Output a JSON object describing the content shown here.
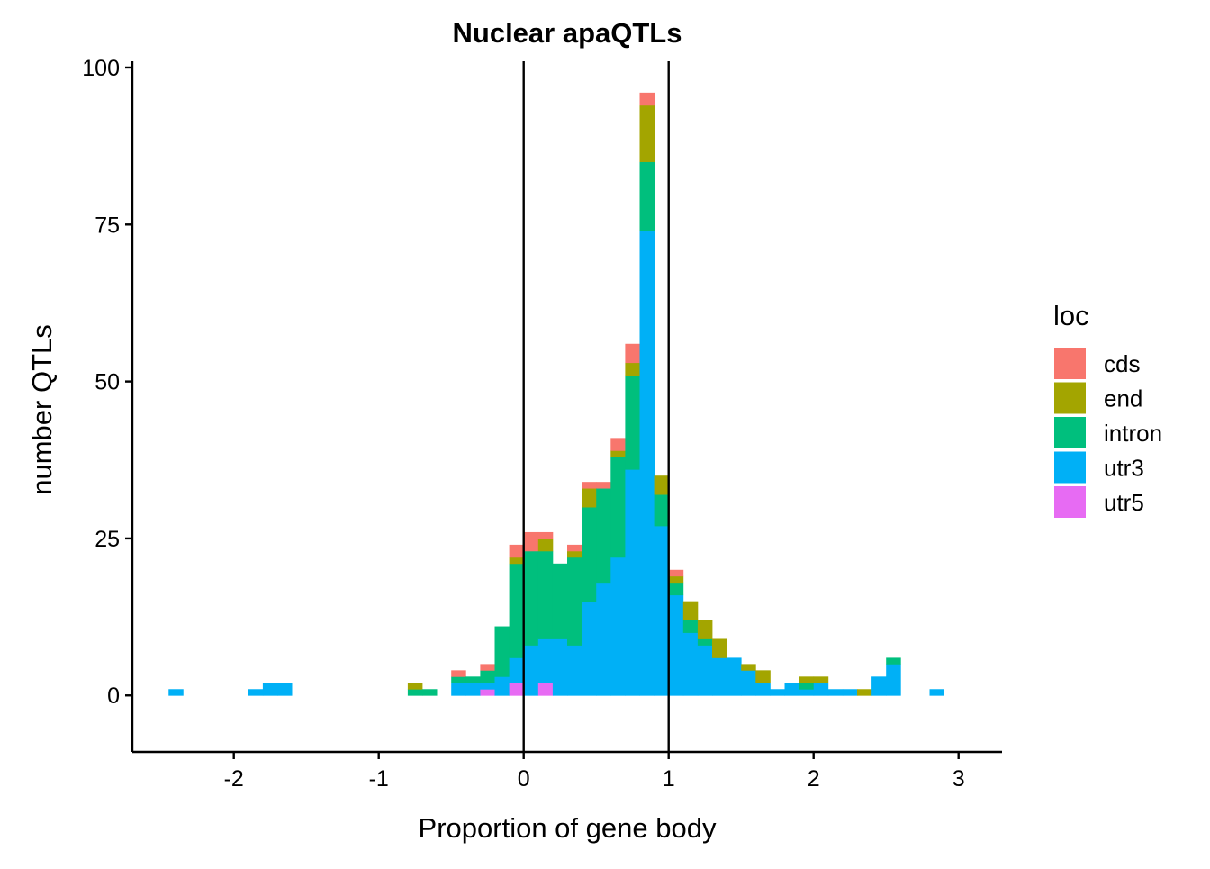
{
  "chart_data": {
    "type": "bar",
    "subtype": "stacked-histogram",
    "title": "Nuclear apaQTLs",
    "xlabel": "Proportion of gene body",
    "ylabel": "number QTLs",
    "xlim": [
      -2.7,
      3.3
    ],
    "ylim": [
      -9,
      101
    ],
    "bin_width": 0.1,
    "x_ticks": [
      -2,
      -1,
      0,
      1,
      2,
      3
    ],
    "x_tick_labels": [
      "-2",
      "-1",
      "0",
      "1",
      "2",
      "3"
    ],
    "y_ticks": [
      0,
      25,
      50,
      75,
      100
    ],
    "y_tick_labels": [
      "0",
      "25",
      "50",
      "75",
      "100"
    ],
    "reference_lines": [
      0,
      1
    ],
    "legend": {
      "title": "loc",
      "position": "right",
      "entries": [
        {
          "key": "cds",
          "label": "cds",
          "color": "#F8766D"
        },
        {
          "key": "end",
          "label": "end",
          "color": "#A3A500"
        },
        {
          "key": "intron",
          "label": "intron",
          "color": "#00BF7D"
        },
        {
          "key": "utr3",
          "label": "utr3",
          "color": "#00B0F6"
        },
        {
          "key": "utr5",
          "label": "utr5",
          "color": "#E76BF3"
        }
      ]
    },
    "stack_order": [
      "utr5",
      "utr3",
      "intron",
      "end",
      "cds"
    ],
    "bins": [
      {
        "x": -2.4,
        "utr3": 1
      },
      {
        "x": -1.85,
        "utr3": 1
      },
      {
        "x": -1.75,
        "utr3": 2
      },
      {
        "x": -1.65,
        "utr3": 2
      },
      {
        "x": -0.75,
        "intron": 1,
        "end": 1
      },
      {
        "x": -0.65,
        "intron": 1
      },
      {
        "x": -0.45,
        "utr3": 2,
        "intron": 1,
        "cds": 1
      },
      {
        "x": -0.35,
        "utr3": 2,
        "intron": 1
      },
      {
        "x": -0.25,
        "utr5": 1,
        "utr3": 1,
        "intron": 2,
        "cds": 1
      },
      {
        "x": -0.15,
        "utr3": 3,
        "intron": 8
      },
      {
        "x": -0.05,
        "utr5": 2,
        "utr3": 4,
        "intron": 15,
        "end": 1,
        "cds": 2
      },
      {
        "x": 0.05,
        "utr3": 8,
        "intron": 15,
        "cds": 3
      },
      {
        "x": 0.15,
        "utr5": 2,
        "utr3": 7,
        "intron": 14,
        "end": 2,
        "cds": 1
      },
      {
        "x": 0.25,
        "utr3": 9,
        "intron": 12
      },
      {
        "x": 0.35,
        "utr3": 8,
        "intron": 14,
        "end": 1,
        "cds": 1
      },
      {
        "x": 0.45,
        "utr3": 15,
        "intron": 15,
        "end": 3,
        "cds": 1
      },
      {
        "x": 0.55,
        "utr3": 18,
        "intron": 15,
        "cds": 1
      },
      {
        "x": 0.65,
        "utr3": 22,
        "intron": 16,
        "end": 1,
        "cds": 2
      },
      {
        "x": 0.75,
        "utr3": 36,
        "intron": 15,
        "end": 2,
        "cds": 3
      },
      {
        "x": 0.85,
        "utr3": 74,
        "intron": 11,
        "end": 9,
        "cds": 2
      },
      {
        "x": 0.95,
        "utr3": 27,
        "intron": 5,
        "end": 3
      },
      {
        "x": 1.05,
        "utr3": 16,
        "intron": 2,
        "end": 1,
        "cds": 1
      },
      {
        "x": 1.15,
        "utr3": 10,
        "intron": 2,
        "end": 3
      },
      {
        "x": 1.25,
        "utr3": 8,
        "intron": 1,
        "end": 3
      },
      {
        "x": 1.35,
        "utr3": 6,
        "end": 3
      },
      {
        "x": 1.45,
        "utr3": 6
      },
      {
        "x": 1.55,
        "utr3": 4,
        "end": 1
      },
      {
        "x": 1.65,
        "utr3": 2,
        "end": 2
      },
      {
        "x": 1.75,
        "utr3": 1
      },
      {
        "x": 1.85,
        "utr3": 2
      },
      {
        "x": 1.95,
        "utr3": 1,
        "intron": 1,
        "end": 1
      },
      {
        "x": 2.05,
        "utr3": 2,
        "end": 1
      },
      {
        "x": 2.15,
        "utr3": 1
      },
      {
        "x": 2.25,
        "utr3": 1
      },
      {
        "x": 2.35,
        "end": 1
      },
      {
        "x": 2.45,
        "utr3": 3
      },
      {
        "x": 2.55,
        "utr3": 5,
        "intron": 1
      },
      {
        "x": 2.85,
        "utr3": 1
      }
    ]
  }
}
